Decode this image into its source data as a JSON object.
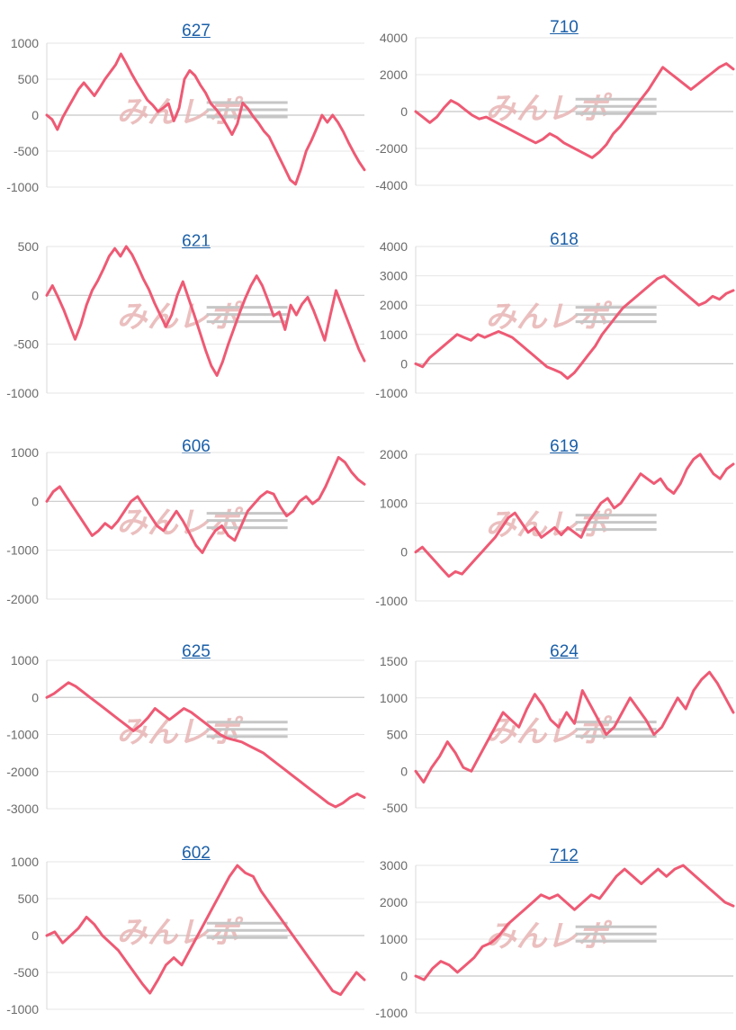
{
  "colors": {
    "line": "#ee5a74",
    "watermark_kana": "#e8b4b4",
    "watermark_latin": "#bdbdbd",
    "title_link": "#1a5fa8"
  },
  "watermark": {
    "text": "みんレポ"
  },
  "chart_data": [
    {
      "type": "line",
      "title": "627",
      "yticks": [
        1000,
        500,
        0,
        -500,
        -1000
      ],
      "ylim": [
        -1000,
        1000
      ],
      "values": [
        0,
        -60,
        -200,
        -30,
        100,
        230,
        360,
        450,
        360,
        270,
        380,
        500,
        600,
        700,
        850,
        720,
        580,
        450,
        330,
        210,
        140,
        50,
        100,
        160,
        -80,
        100,
        500,
        620,
        550,
        420,
        310,
        160,
        80,
        -20,
        -140,
        -270,
        -120,
        170,
        90,
        -20,
        -110,
        -220,
        -300,
        -450,
        -600,
        -750,
        -900,
        -960,
        -750,
        -500,
        -350,
        -180,
        0,
        -100,
        0,
        -100,
        -230,
        -380,
        -520,
        -650,
        -760
      ]
    },
    {
      "type": "line",
      "title": "710",
      "yticks": [
        4000,
        2000,
        0,
        -2000,
        -4000
      ],
      "ylim": [
        -4000,
        4000
      ],
      "values": [
        0,
        -300,
        -600,
        -300,
        200,
        600,
        400,
        100,
        -200,
        -400,
        -300,
        -500,
        -700,
        -900,
        -1100,
        -1300,
        -1500,
        -1700,
        -1500,
        -1200,
        -1400,
        -1700,
        -1900,
        -2100,
        -2300,
        -2500,
        -2200,
        -1800,
        -1200,
        -800,
        -300,
        200,
        700,
        1200,
        1800,
        2400,
        2100,
        1800,
        1500,
        1200,
        1500,
        1800,
        2100,
        2400,
        2600,
        2300
      ]
    },
    {
      "type": "line",
      "title": "621",
      "yticks": [
        500,
        0,
        -500,
        -1000
      ],
      "ylim": [
        -1000,
        500
      ],
      "values": [
        0,
        100,
        -20,
        -150,
        -300,
        -450,
        -300,
        -100,
        50,
        150,
        270,
        400,
        480,
        400,
        500,
        420,
        300,
        170,
        60,
        -80,
        -200,
        -320,
        -200,
        0,
        140,
        -30,
        -200,
        -380,
        -560,
        -720,
        -820,
        -680,
        -500,
        -340,
        -180,
        -30,
        100,
        200,
        100,
        -50,
        -210,
        -170,
        -350,
        -100,
        -200,
        -90,
        -20,
        -150,
        -300,
        -460,
        -200,
        50,
        -100,
        -250,
        -400,
        -550,
        -670
      ]
    },
    {
      "type": "line",
      "title": "618",
      "yticks": [
        4000,
        3000,
        2000,
        1000,
        0,
        -1000
      ],
      "ylim": [
        -1000,
        4000
      ],
      "values": [
        0,
        -100,
        200,
        400,
        600,
        800,
        1000,
        900,
        800,
        1000,
        900,
        1000,
        1100,
        1000,
        900,
        700,
        500,
        300,
        100,
        -100,
        -200,
        -300,
        -500,
        -300,
        0,
        300,
        600,
        1000,
        1300,
        1600,
        1900,
        2100,
        2300,
        2500,
        2700,
        2900,
        3000,
        2800,
        2600,
        2400,
        2200,
        2000,
        2100,
        2300,
        2200,
        2400,
        2500
      ]
    },
    {
      "type": "line",
      "title": "606",
      "yticks": [
        1000,
        0,
        -1000,
        -2000
      ],
      "ylim": [
        -2000,
        1000
      ],
      "values": [
        0,
        200,
        300,
        100,
        -100,
        -300,
        -500,
        -700,
        -600,
        -450,
        -550,
        -400,
        -200,
        0,
        100,
        -100,
        -300,
        -500,
        -600,
        -400,
        -200,
        -400,
        -650,
        -900,
        -1050,
        -800,
        -600,
        -500,
        -700,
        -800,
        -500,
        -200,
        -50,
        100,
        200,
        150,
        -100,
        -300,
        -200,
        0,
        100,
        -50,
        50,
        300,
        600,
        900,
        800,
        600,
        450,
        350
      ]
    },
    {
      "type": "line",
      "title": "619",
      "yticks": [
        2000,
        1000,
        0,
        -1000
      ],
      "ylim": [
        -1000,
        2000
      ],
      "values": [
        0,
        100,
        -50,
        -200,
        -350,
        -500,
        -400,
        -450,
        -300,
        -150,
        0,
        150,
        300,
        500,
        700,
        800,
        600,
        400,
        500,
        300,
        400,
        500,
        350,
        500,
        400,
        300,
        600,
        800,
        1000,
        1100,
        900,
        1000,
        1200,
        1400,
        1600,
        1500,
        1400,
        1500,
        1300,
        1200,
        1400,
        1700,
        1900,
        2000,
        1800,
        1600,
        1500,
        1700,
        1800
      ]
    },
    {
      "type": "line",
      "title": "625",
      "yticks": [
        1000,
        0,
        -1000,
        -2000,
        -3000
      ],
      "ylim": [
        -3000,
        1000
      ],
      "values": [
        0,
        100,
        250,
        400,
        300,
        150,
        0,
        -150,
        -300,
        -450,
        -600,
        -750,
        -900,
        -750,
        -550,
        -300,
        -450,
        -600,
        -450,
        -300,
        -400,
        -550,
        -700,
        -850,
        -1000,
        -1100,
        -1150,
        -1200,
        -1300,
        -1400,
        -1500,
        -1650,
        -1800,
        -1950,
        -2100,
        -2250,
        -2400,
        -2550,
        -2700,
        -2850,
        -2950,
        -2850,
        -2700,
        -2600,
        -2700
      ]
    },
    {
      "type": "line",
      "title": "624",
      "yticks": [
        1500,
        1000,
        500,
        0,
        -500
      ],
      "ylim": [
        -500,
        1500
      ],
      "values": [
        0,
        -150,
        50,
        200,
        400,
        250,
        50,
        0,
        200,
        400,
        600,
        800,
        700,
        600,
        850,
        1050,
        900,
        700,
        600,
        800,
        650,
        1100,
        900,
        700,
        500,
        600,
        800,
        1000,
        850,
        700,
        500,
        600,
        800,
        1000,
        850,
        1100,
        1250,
        1350,
        1200,
        1000,
        800
      ]
    },
    {
      "type": "line",
      "title": "602",
      "yticks": [
        1000,
        500,
        0,
        -500,
        -1000
      ],
      "ylim": [
        -1000,
        1000
      ],
      "values": [
        0,
        50,
        -100,
        0,
        100,
        250,
        150,
        0,
        -100,
        -200,
        -350,
        -500,
        -650,
        -780,
        -600,
        -400,
        -300,
        -400,
        -200,
        0,
        200,
        400,
        600,
        800,
        950,
        850,
        800,
        600,
        450,
        300,
        150,
        0,
        -150,
        -300,
        -450,
        -600,
        -750,
        -800,
        -650,
        -500,
        -600
      ]
    },
    {
      "type": "line",
      "title": "712",
      "yticks": [
        3000,
        2000,
        1000,
        0,
        -1000
      ],
      "ylim": [
        -1000,
        3000
      ],
      "values": [
        0,
        -100,
        200,
        400,
        300,
        100,
        300,
        500,
        800,
        900,
        1100,
        1400,
        1600,
        1800,
        2000,
        2200,
        2100,
        2200,
        2000,
        1800,
        2000,
        2200,
        2100,
        2400,
        2700,
        2900,
        2700,
        2500,
        2700,
        2900,
        2700,
        2900,
        3000,
        2800,
        2600,
        2400,
        2200,
        2000,
        1900
      ]
    }
  ]
}
